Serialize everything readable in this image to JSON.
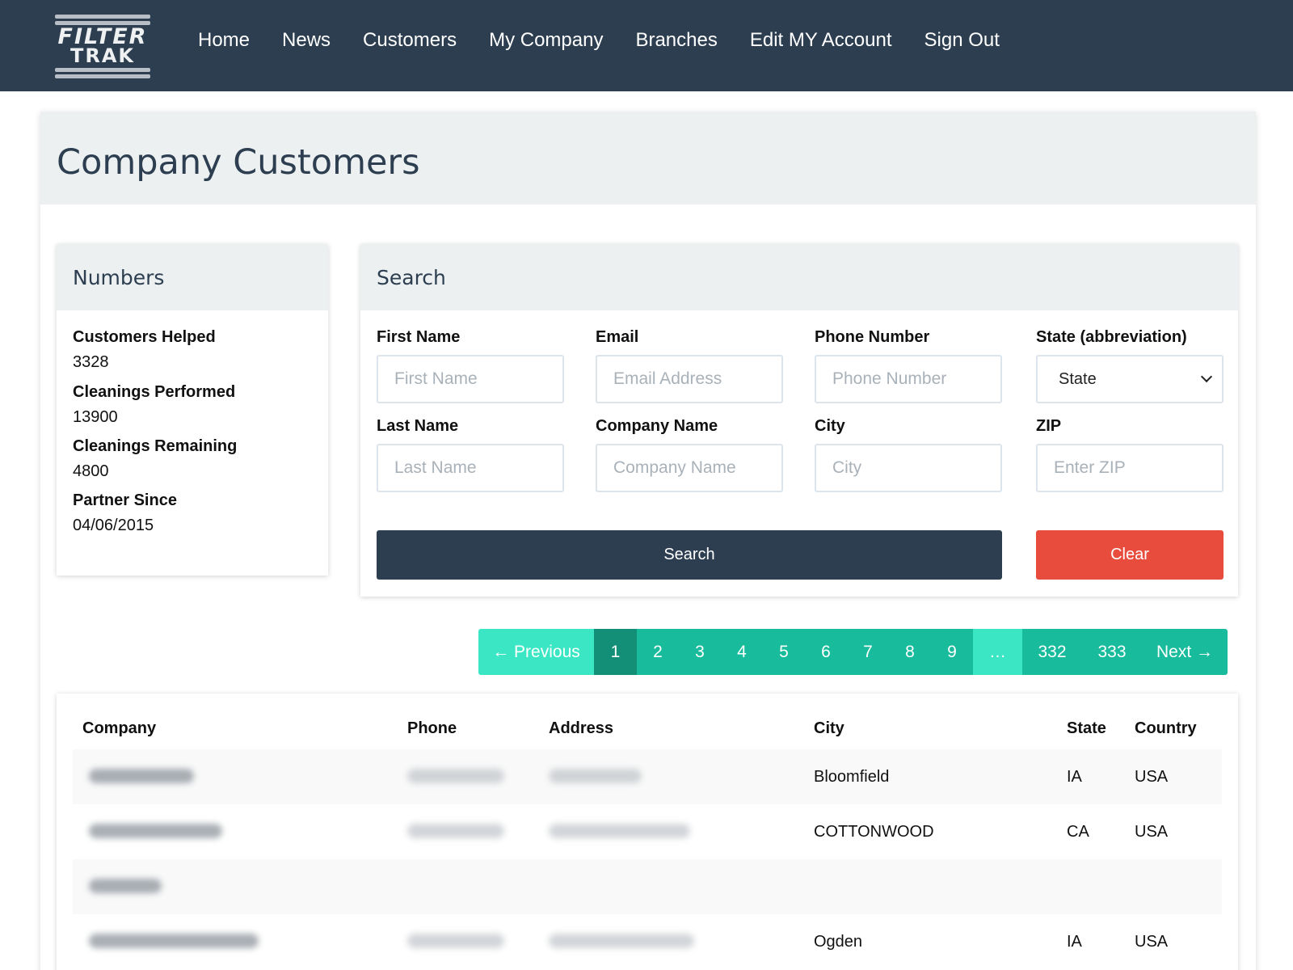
{
  "brand": {
    "logo_line1": "FILTER",
    "logo_line2": "TRAK"
  },
  "nav": {
    "items": [
      "Home",
      "News",
      "Customers",
      "My Company",
      "Branches",
      "Edit MY Account",
      "Sign Out"
    ]
  },
  "page": {
    "title": "Company Customers"
  },
  "numbers": {
    "title": "Numbers",
    "stats": [
      {
        "label": "Customers Helped",
        "value": "3328"
      },
      {
        "label": "Cleanings Performed",
        "value": "13900"
      },
      {
        "label": "Cleanings Remaining",
        "value": "4800"
      },
      {
        "label": "Partner Since",
        "value": "04/06/2015"
      }
    ]
  },
  "search": {
    "title": "Search",
    "fields": {
      "first_name": {
        "label": "First Name",
        "placeholder": "First Name"
      },
      "email": {
        "label": "Email",
        "placeholder": "Email Address"
      },
      "phone": {
        "label": "Phone Number",
        "placeholder": "Phone Number"
      },
      "state": {
        "label": "State (abbreviation)",
        "selected": "State"
      },
      "last_name": {
        "label": "Last Name",
        "placeholder": "Last Name"
      },
      "company": {
        "label": "Company Name",
        "placeholder": "Company Name"
      },
      "city": {
        "label": "City",
        "placeholder": "City"
      },
      "zip": {
        "label": "ZIP",
        "placeholder": "Enter ZIP"
      }
    },
    "search_button": "Search",
    "clear_button": "Clear"
  },
  "pagination": {
    "previous": "← Previous",
    "pages": [
      "1",
      "2",
      "3",
      "4",
      "5",
      "6",
      "7",
      "8",
      "9"
    ],
    "ellipsis": "…",
    "last_pages": [
      "332",
      "333"
    ],
    "next": "Next →",
    "current": "1"
  },
  "table": {
    "headers": {
      "company": "Company",
      "phone": "Phone",
      "address": "Address",
      "city": "City",
      "state": "State",
      "country": "Country"
    },
    "rows": [
      {
        "city": "Bloomfield",
        "state": "IA",
        "country": "USA"
      },
      {
        "city": "COTTONWOOD",
        "state": "CA",
        "country": "USA"
      },
      {
        "city": "",
        "state": "",
        "country": ""
      },
      {
        "city": "Ogden",
        "state": "IA",
        "country": "USA"
      }
    ]
  },
  "colors": {
    "navbar": "#2c3e50",
    "accent": "#18bc9c",
    "danger": "#e74c3c",
    "panel_header": "#ecf0f1"
  }
}
